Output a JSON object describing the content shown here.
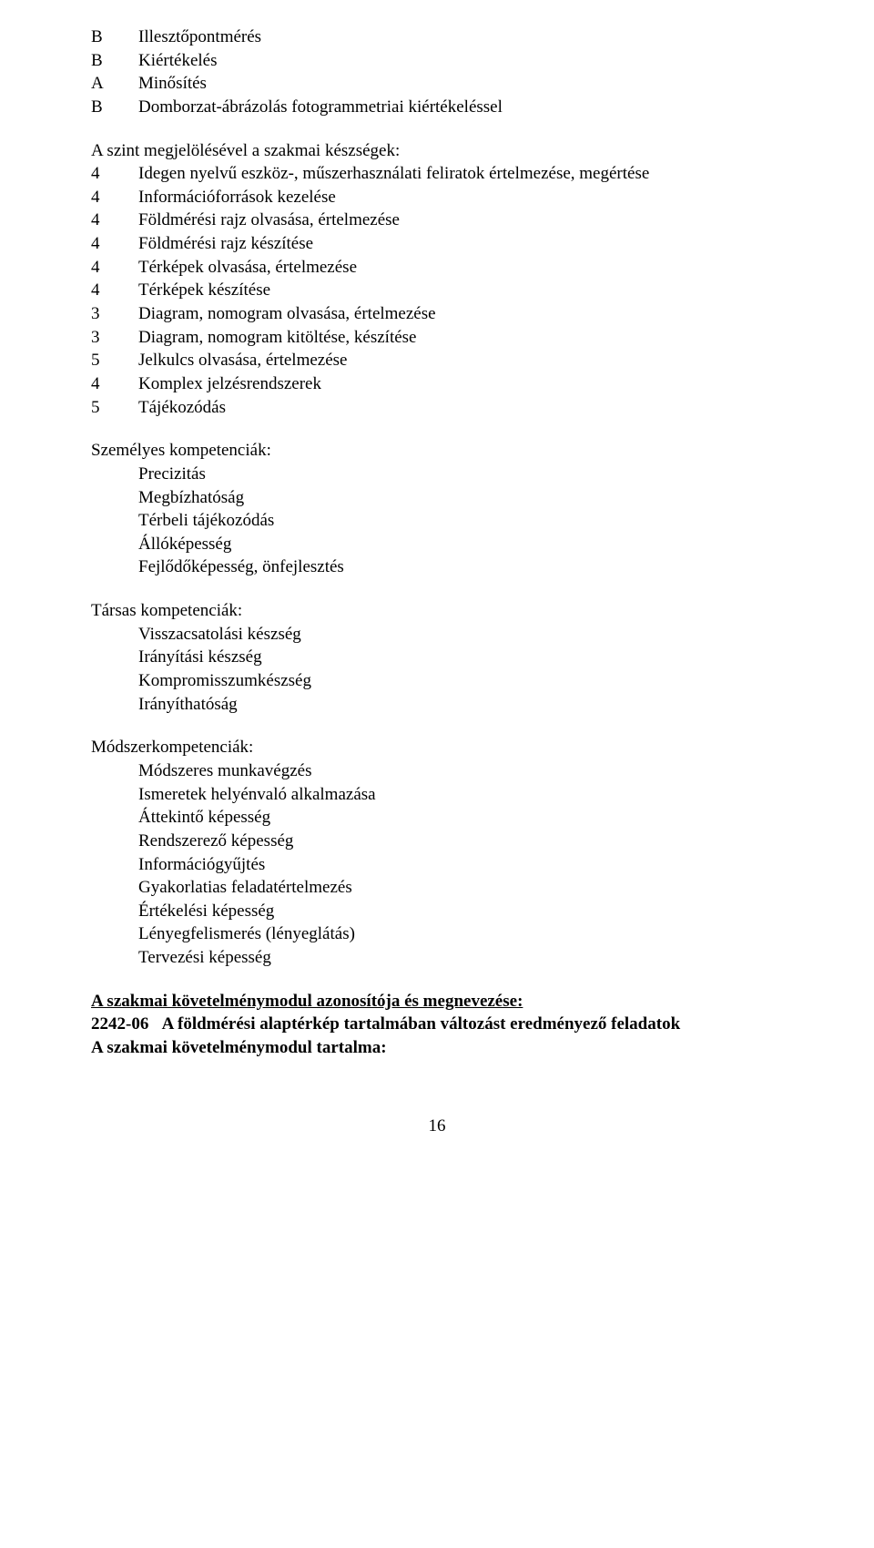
{
  "top_list": [
    {
      "code": "B",
      "text": "Illesztőpontmérés"
    },
    {
      "code": "B",
      "text": "Kiértékelés"
    },
    {
      "code": "A",
      "text": "Minősítés"
    },
    {
      "code": "B",
      "text": "Domborzat-ábrázolás fotogrammetriai kiértékeléssel"
    }
  ],
  "skills_heading": "A szint megjelölésével a szakmai készségek:",
  "skills_list": [
    {
      "code": "4",
      "text": "Idegen nyelvű eszköz-, műszerhasználati feliratok értelmezése, megértése"
    },
    {
      "code": "4",
      "text": "Információforrások kezelése"
    },
    {
      "code": "4",
      "text": "Földmérési rajz olvasása, értelmezése"
    },
    {
      "code": "4",
      "text": "Földmérési rajz készítése"
    },
    {
      "code": "4",
      "text": "Térképek olvasása, értelmezése"
    },
    {
      "code": "4",
      "text": "Térképek készítése"
    },
    {
      "code": "3",
      "text": "Diagram, nomogram olvasása, értelmezése"
    },
    {
      "code": "3",
      "text": "Diagram, nomogram kitöltése, készítése"
    },
    {
      "code": "5",
      "text": "Jelkulcs olvasása, értelmezése"
    },
    {
      "code": "4",
      "text": "Komplex jelzésrendszerek"
    },
    {
      "code": "5",
      "text": "Tájékozódás"
    }
  ],
  "personal_heading": "Személyes kompetenciák:",
  "personal_items": [
    "Precizitás",
    "Megbízhatóság",
    "Térbeli tájékozódás",
    "Állóképesség",
    "Fejlődőképesség, önfejlesztés"
  ],
  "social_heading": "Társas kompetenciák:",
  "social_items": [
    "Visszacsatolási készség",
    "Irányítási készség",
    "Kompromisszumkészség",
    "Irányíthatóság"
  ],
  "method_heading": "Módszerkompetenciák:",
  "method_items": [
    "Módszeres munkavégzés",
    "Ismeretek helyénvaló alkalmazása",
    "Áttekintő képesség",
    "Rendszerező képesség",
    "Információgyűjtés",
    "Gyakorlatias feladatértelmezés",
    "Értékelési képesség",
    "Lényegfelismerés (lényeglátás)",
    "Tervezési képesség"
  ],
  "module_line1": "A szakmai követelménymodul azonosítója és megnevezése:",
  "module_code": "2242-06",
  "module_title": "A földmérési alaptérkép tartalmában változást eredményező feladatok",
  "module_line3": "A szakmai követelménymodul tartalma:",
  "page_number": "16"
}
